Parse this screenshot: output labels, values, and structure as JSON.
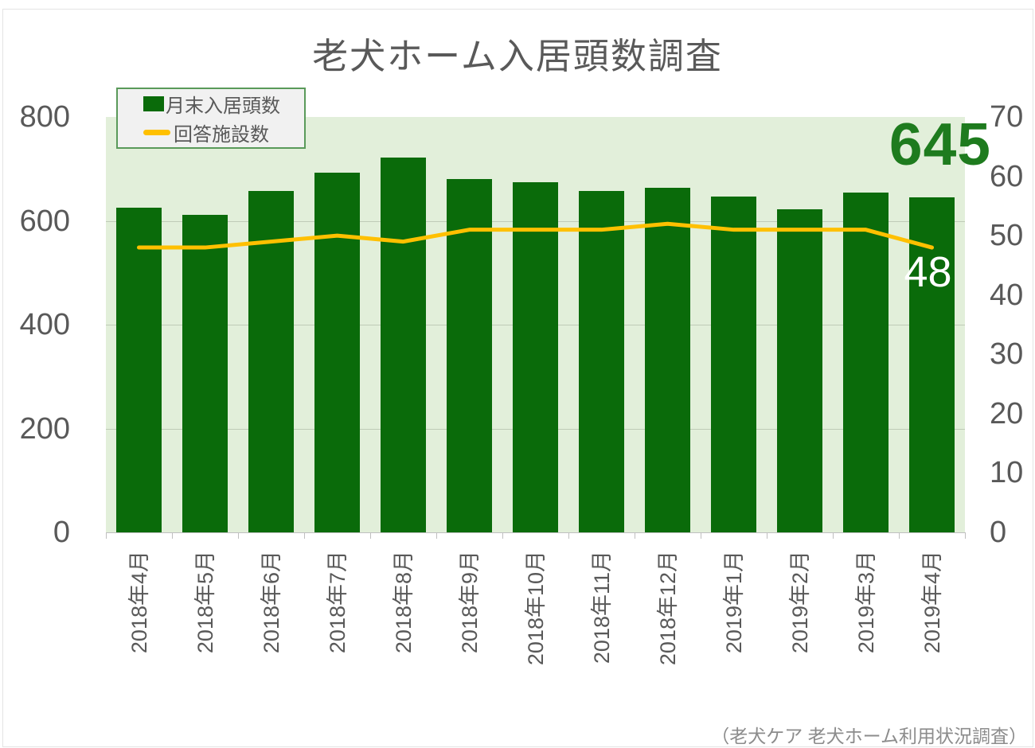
{
  "title": "老犬ホーム入居頭数調査",
  "legend": {
    "items": [
      {
        "label": "月末入居頭数",
        "swatch": "square"
      },
      {
        "label": "回答施設数",
        "swatch": "line"
      }
    ]
  },
  "annotations": {
    "latest_bar_value": "645",
    "latest_line_value": "48"
  },
  "source": "（老犬ケア 老犬ホーム利用状況調査）",
  "colors": {
    "bar": "#0a6b0a",
    "line": "#ffc000",
    "plot_background": "#e2efda",
    "big_value_text": "#1e7b1e",
    "axis_text": "#595959",
    "legend_border": "#5a9a5a"
  },
  "chart_data": {
    "type": "bar",
    "subtype": "bar+line combo, dual axis",
    "title": "老犬ホーム入居頭数調査",
    "categories": [
      "2018年4月",
      "2018年5月",
      "2018年6月",
      "2018年7月",
      "2018年8月",
      "2018年9月",
      "2018年10月",
      "2018年11月",
      "2018年12月",
      "2019年1月",
      "2019年2月",
      "2019年3月",
      "2019年4月"
    ],
    "series": [
      {
        "name": "月末入居頭数",
        "type": "bar",
        "axis": "left",
        "values": [
          625,
          612,
          657,
          692,
          722,
          680,
          675,
          657,
          663,
          646,
          622,
          655,
          645
        ]
      },
      {
        "name": "回答施設数",
        "type": "line",
        "axis": "right",
        "values": [
          48,
          48,
          49,
          50,
          49,
          51,
          51,
          51,
          52,
          51,
          51,
          51,
          48
        ]
      }
    ],
    "left_axis": {
      "range": [
        0,
        800
      ],
      "ticks": [
        0,
        200,
        400,
        600,
        800
      ],
      "gridlines": [
        200,
        400,
        600
      ]
    },
    "right_axis": {
      "range": [
        0,
        70
      ],
      "ticks": [
        0,
        10,
        20,
        30,
        40,
        50,
        60,
        70
      ]
    },
    "legend_position": "top-left",
    "grid": "horizontal, faint",
    "annotations": [
      "latest bar value 645 shown top-right",
      "last line point labeled 48"
    ]
  }
}
